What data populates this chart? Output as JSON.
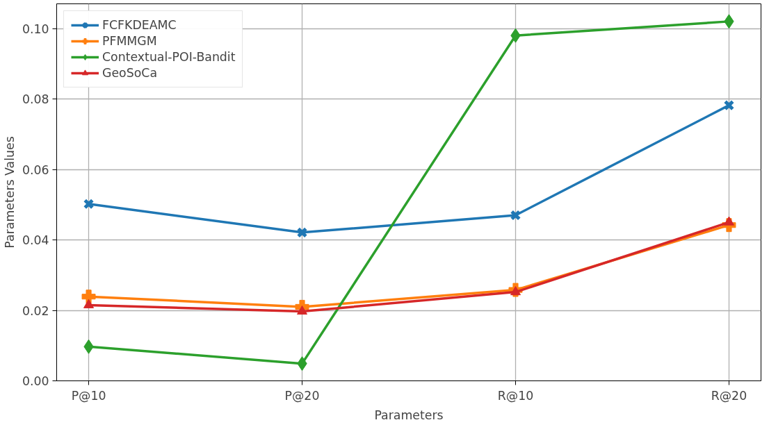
{
  "chart_data": {
    "type": "line",
    "xlabel": "Parameters",
    "ylabel": "Parameters Values",
    "categories": [
      "P@10",
      "P@20",
      "R@10",
      "R@20"
    ],
    "series": [
      {
        "name": "FCFKDEAMC",
        "color": "#1f77b4",
        "marker": "x",
        "values": [
          0.0502,
          0.0421,
          0.047,
          0.0782
        ]
      },
      {
        "name": "PFMMGM",
        "color": "#ff7f0e",
        "marker": "cross",
        "values": [
          0.0239,
          0.021,
          0.0258,
          0.0442
        ]
      },
      {
        "name": "Contextual-POI-Bandit",
        "color": "#2ca02c",
        "marker": "diamond",
        "values": [
          0.0097,
          0.0049,
          0.098,
          0.102
        ]
      },
      {
        "name": "GeoSoCa",
        "color": "#d62728",
        "marker": "triangle",
        "values": [
          0.0215,
          0.0197,
          0.0252,
          0.045
        ]
      }
    ],
    "ylim": [
      0,
      0.107
    ],
    "yticks": [
      {
        "value": 0,
        "label": "0.00"
      },
      {
        "value": 0.02,
        "label": "0.02"
      },
      {
        "value": 0.04,
        "label": "0.04"
      },
      {
        "value": 0.06,
        "label": "0.06"
      },
      {
        "value": 0.08,
        "label": "0.08"
      },
      {
        "value": 0.1,
        "label": "0.10"
      }
    ],
    "grid": true,
    "legend": "top left",
    "line_style": "solid"
  }
}
